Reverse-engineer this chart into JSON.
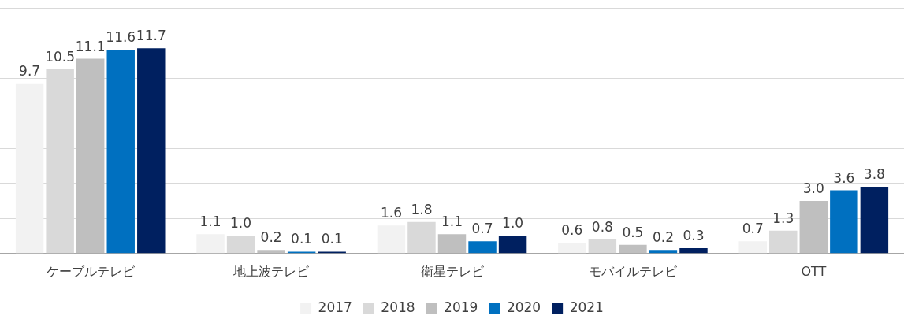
{
  "chart_data": {
    "type": "bar",
    "categories": [
      "ケーブルテレビ",
      "地上波テレビ",
      "衛星テレビ",
      "モバイルテレビ",
      "OTT"
    ],
    "series": [
      {
        "name": "2017",
        "color": "#f2f2f2",
        "values": [
          9.7,
          1.1,
          1.6,
          0.6,
          0.7
        ],
        "value_labels": [
          "9.7",
          "1.1",
          "1.6",
          "0.6",
          "0.7"
        ]
      },
      {
        "name": "2018",
        "color": "#d9d9d9",
        "values": [
          10.5,
          1.0,
          1.8,
          0.8,
          1.3
        ],
        "value_labels": [
          "10.5",
          "1.0",
          "1.8",
          "0.8",
          "1.3"
        ]
      },
      {
        "name": "2019",
        "color": "#bfbfbf",
        "values": [
          11.1,
          0.2,
          1.1,
          0.5,
          3.0
        ],
        "value_labels": [
          "11.1",
          "0.2",
          "1.1",
          "0.5",
          "3.0"
        ]
      },
      {
        "name": "2020",
        "color": "#0070c0",
        "values": [
          11.6,
          0.1,
          0.7,
          0.2,
          3.6
        ],
        "value_labels": [
          "11.6",
          "0.1",
          "0.7",
          "0.2",
          "3.6"
        ]
      },
      {
        "name": "2021",
        "color": "#002060",
        "values": [
          11.7,
          0.1,
          1.0,
          0.3,
          3.8
        ],
        "value_labels": [
          "11.7",
          "0.1",
          "1.0",
          "0.3",
          "3.8"
        ]
      }
    ],
    "ylim": [
      0,
      14
    ],
    "yticks": [
      {
        "value": 0,
        "label": null
      },
      {
        "value": 2,
        "label": null
      },
      {
        "value": 4,
        "label": null
      },
      {
        "value": 6,
        "label": null
      },
      {
        "value": 8,
        "label": null
      },
      {
        "value": 10,
        "label": null
      },
      {
        "value": 12,
        "label": null
      },
      {
        "value": 14,
        "label": null
      }
    ],
    "grid": "y",
    "legend": "bottom",
    "tick_labels": "x"
  }
}
